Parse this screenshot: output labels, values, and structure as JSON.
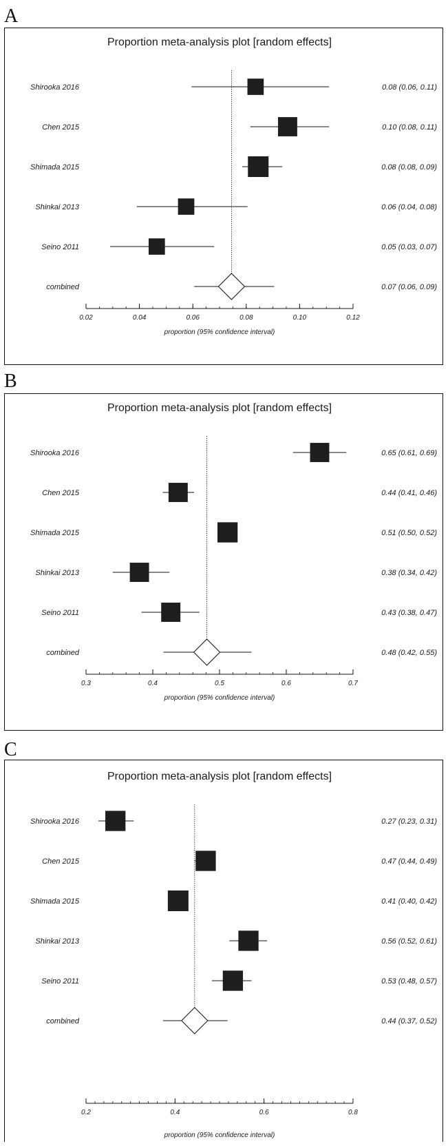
{
  "chart_data": [
    {
      "type": "forest",
      "panel_label": "A",
      "title": "Proportion meta-analysis plot [random effects]",
      "xlabel": "proportion (95% confidence interval)",
      "xlim": [
        0.02,
        0.12
      ],
      "ticks": [
        0.02,
        0.04,
        0.06,
        0.08,
        0.1,
        0.12
      ],
      "tick_labels": [
        "0.02",
        "0.04",
        "0.06",
        "0.08",
        "0.10",
        "0.12"
      ],
      "minor_tick_step": 0.005,
      "reference_line": 0.0745,
      "studies": [
        {
          "name": "Shirooka 2016",
          "estimate": 0.0835,
          "lower": 0.0595,
          "upper": 0.111,
          "weight": 0.55,
          "ci_text": "0.08 (0.06, 0.11)"
        },
        {
          "name": "Chen 2015",
          "estimate": 0.0955,
          "lower": 0.0815,
          "upper": 0.111,
          "weight": 0.85,
          "ci_text": "0.10 (0.08, 0.11)"
        },
        {
          "name": "Shimada 2015",
          "estimate": 0.0845,
          "lower": 0.0785,
          "upper": 0.0935,
          "weight": 1.0,
          "ci_text": "0.08 (0.08, 0.09)"
        },
        {
          "name": "Shinkai 2013",
          "estimate": 0.0575,
          "lower": 0.039,
          "upper": 0.0805,
          "weight": 0.55,
          "ci_text": "0.06 (0.04, 0.08)"
        },
        {
          "name": "Seino 2011",
          "estimate": 0.0465,
          "lower": 0.029,
          "upper": 0.068,
          "weight": 0.55,
          "ci_text": "0.05 (0.03, 0.07)"
        }
      ],
      "combined": {
        "name": "combined",
        "estimate": 0.0745,
        "lower": 0.0605,
        "upper": 0.0905,
        "ci_text": "0.07 (0.06, 0.09)"
      }
    },
    {
      "type": "forest",
      "panel_label": "B",
      "title": "Proportion meta-analysis plot [random effects]",
      "xlabel": "proportion (95% confidence interval)",
      "xlim": [
        0.3,
        0.7
      ],
      "ticks": [
        0.3,
        0.4,
        0.5,
        0.6,
        0.7
      ],
      "tick_labels": [
        "0.3",
        "0.4",
        "0.5",
        "0.6",
        "0.7"
      ],
      "minor_tick_step": 0.02,
      "reference_line": 0.481,
      "studies": [
        {
          "name": "Shirooka 2016",
          "estimate": 0.65,
          "lower": 0.61,
          "upper": 0.69,
          "weight": 0.85,
          "ci_text": "0.65 (0.61, 0.69)"
        },
        {
          "name": "Chen 2015",
          "estimate": 0.438,
          "lower": 0.415,
          "upper": 0.462,
          "weight": 0.85,
          "ci_text": "0.44 (0.41, 0.46)"
        },
        {
          "name": "Shimada 2015",
          "estimate": 0.512,
          "lower": 0.5,
          "upper": 0.52,
          "weight": 0.95,
          "ci_text": "0.51 (0.50, 0.52)"
        },
        {
          "name": "Shinkai 2013",
          "estimate": 0.38,
          "lower": 0.34,
          "upper": 0.425,
          "weight": 0.85,
          "ci_text": "0.38 (0.34, 0.42)"
        },
        {
          "name": "Seino 2011",
          "estimate": 0.427,
          "lower": 0.383,
          "upper": 0.47,
          "weight": 0.85,
          "ci_text": "0.43 (0.38, 0.47)"
        }
      ],
      "combined": {
        "name": "combined",
        "estimate": 0.481,
        "lower": 0.416,
        "upper": 0.548,
        "ci_text": "0.48 (0.42, 0.55)"
      }
    },
    {
      "type": "forest",
      "panel_label": "C",
      "title": "Proportion meta-analysis plot [random effects]",
      "xlabel": "proportion (95% confidence interval)",
      "xlim": [
        0.2,
        0.8
      ],
      "ticks": [
        0.2,
        0.4,
        0.6,
        0.8
      ],
      "tick_labels": [
        "0.2",
        "0.4",
        "0.6",
        "0.8"
      ],
      "minor_tick_step": 0.02,
      "reference_line": 0.444,
      "studies": [
        {
          "name": "Shirooka 2016",
          "estimate": 0.266,
          "lower": 0.228,
          "upper": 0.307,
          "weight": 0.95,
          "ci_text": "0.27 (0.23, 0.31)"
        },
        {
          "name": "Chen 2015",
          "estimate": 0.469,
          "lower": 0.443,
          "upper": 0.49,
          "weight": 0.95,
          "ci_text": "0.47 (0.44, 0.49)"
        },
        {
          "name": "Shimada 2015",
          "estimate": 0.407,
          "lower": 0.4,
          "upper": 0.415,
          "weight": 1.0,
          "ci_text": "0.41 (0.40, 0.42)"
        },
        {
          "name": "Shinkai 2013",
          "estimate": 0.565,
          "lower": 0.522,
          "upper": 0.607,
          "weight": 0.95,
          "ci_text": "0.56 (0.52, 0.61)"
        },
        {
          "name": "Seino 2011",
          "estimate": 0.53,
          "lower": 0.483,
          "upper": 0.572,
          "weight": 0.95,
          "ci_text": "0.53 (0.48, 0.57)"
        }
      ],
      "combined": {
        "name": "combined",
        "estimate": 0.444,
        "lower": 0.373,
        "upper": 0.518,
        "ci_text": "0.44 (0.37, 0.52)"
      }
    }
  ]
}
